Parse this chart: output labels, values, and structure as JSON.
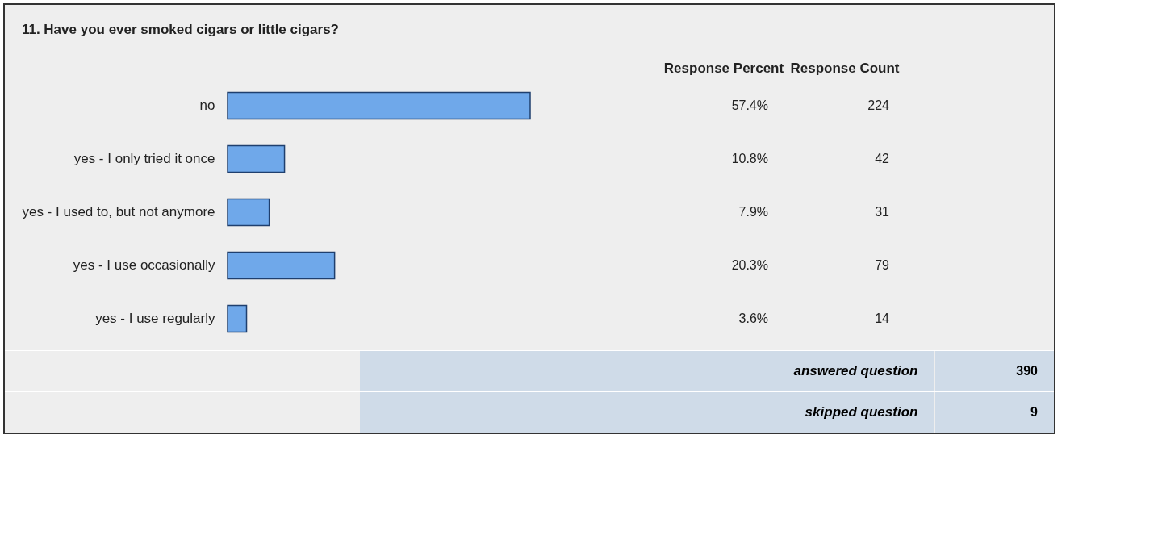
{
  "chart_data": {
    "type": "bar",
    "orientation": "horizontal",
    "title": "11. Have you ever smoked cigars or little cigars?",
    "categories": [
      "no",
      "yes - I only tried it once",
      "yes - I used to, but not anymore",
      "yes - I use occasionally",
      "yes - I use regularly"
    ],
    "values": [
      57.4,
      10.8,
      7.9,
      20.3,
      3.6
    ],
    "value_labels": [
      "57.4%",
      "10.8%",
      "7.9%",
      "20.3%",
      "3.6%"
    ],
    "color": "#6fa8ea",
    "annotations": [
      "Response Percent",
      "Response Count",
      "224",
      "42",
      "31",
      "79",
      "14",
      "answered question",
      "390",
      "skipped question",
      "9"
    ]
  }
}
